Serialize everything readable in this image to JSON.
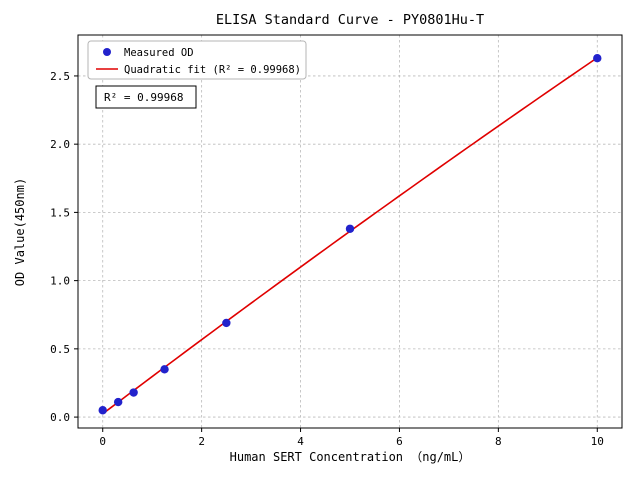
{
  "chart_data": {
    "type": "scatter",
    "title": "ELISA Standard Curve - PY0801Hu-T",
    "xlabel": "Human SERT Concentration （ng/mL）",
    "ylabel": "OD Value(450nm)",
    "annotation": "R² = 0.99968",
    "series": [
      {
        "name": "Measured OD",
        "type": "scatter",
        "marker": "circle",
        "color": "#2222cc",
        "x": [
          0,
          0.3125,
          0.625,
          1.25,
          2.5,
          5,
          10
        ],
        "y": [
          0.05,
          0.11,
          0.18,
          0.35,
          0.69,
          1.38,
          2.63
        ]
      },
      {
        "name": "Quadratic fit (R² = 0.99968)",
        "type": "line",
        "fit": "quadratic",
        "r_squared": 0.99968,
        "color": "#e00000"
      }
    ],
    "xlim": [
      -0.5,
      10.5
    ],
    "ylim": [
      -0.08,
      2.8
    ],
    "xticks": [
      0,
      2,
      4,
      6,
      8,
      10
    ],
    "xtick_labels": [
      "0",
      "2",
      "4",
      "6",
      "8",
      "10"
    ],
    "yticks": [
      0,
      0.5,
      1,
      1.5,
      2,
      2.5
    ],
    "ytick_labels": [
      "0.0",
      "0.5",
      "1.0",
      "1.5",
      "2.0",
      "2.5"
    ],
    "grid": true,
    "legend_position": "upper left"
  }
}
